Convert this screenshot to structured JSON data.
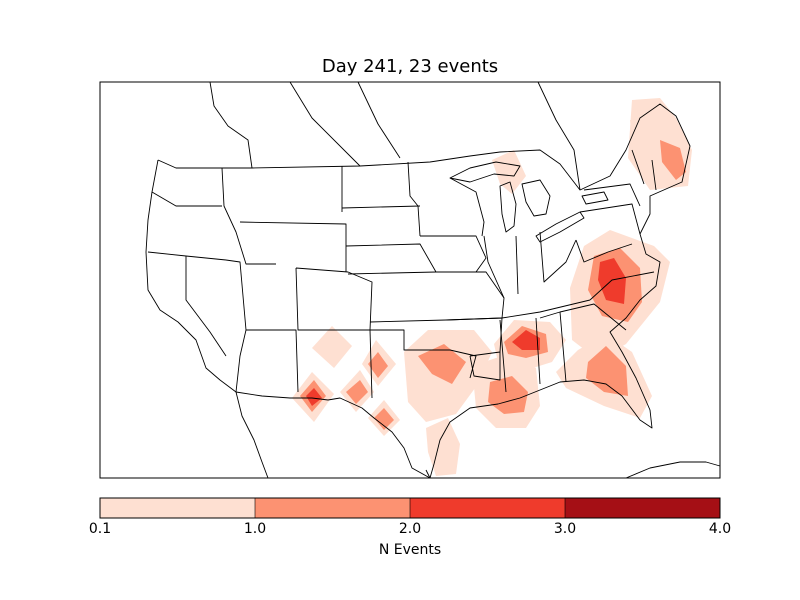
{
  "title": "Day 241, 23 events",
  "colorbar": {
    "label": "N Events",
    "ticks": [
      "0.1",
      "1.0",
      "2.0",
      "3.0",
      "4.0"
    ],
    "levels": [
      {
        "range": "0.1-1.0",
        "color": "#fee0d2"
      },
      {
        "range": "1.0-2.0",
        "color": "#fc9272"
      },
      {
        "range": "2.0-3.0",
        "color": "#ef3b2c"
      },
      {
        "range": "3.0-4.0",
        "color": "#a50f15"
      }
    ]
  },
  "map": {
    "region": "contiguous United States with state boundaries",
    "colors": {
      "light": "#fee0d2",
      "medium": "#fc9272",
      "dark": "#ef3b2c",
      "darkest": "#a50f15",
      "line": "#000000"
    }
  }
}
